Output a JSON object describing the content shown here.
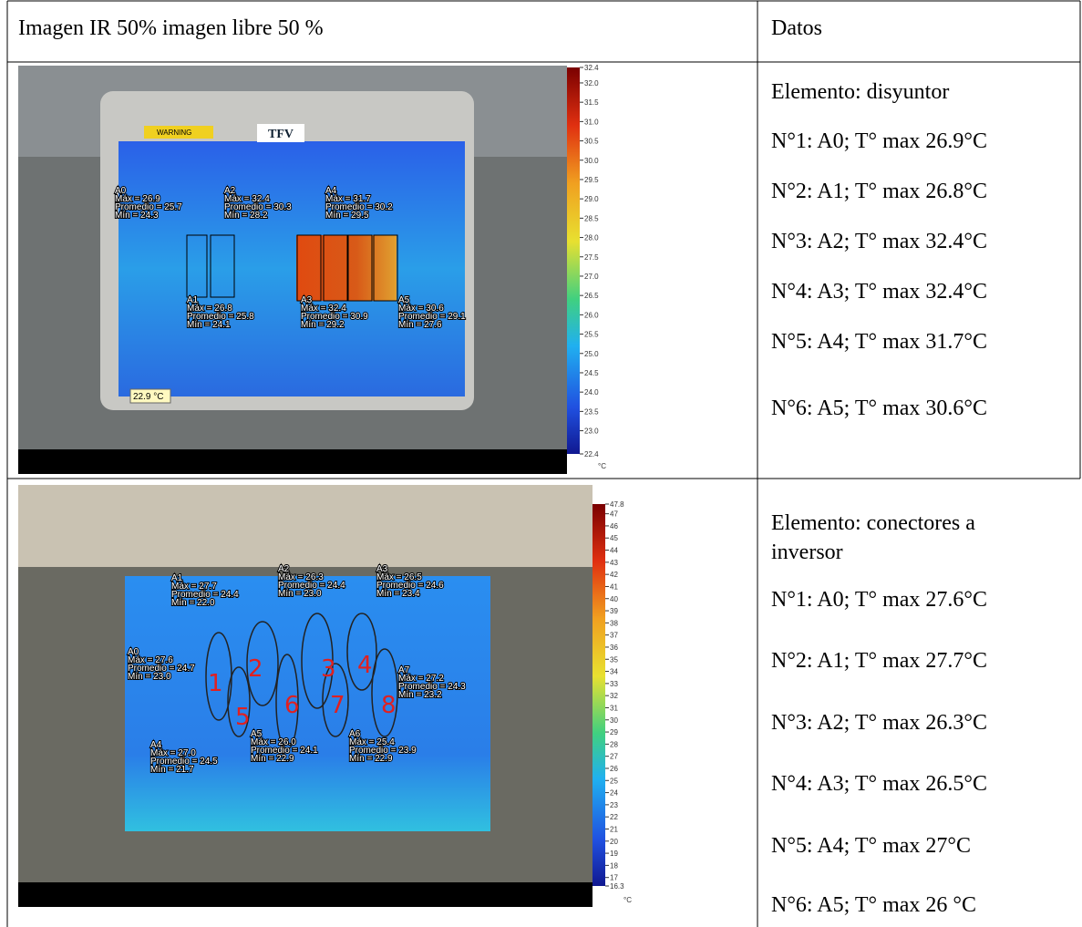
{
  "header": {
    "left": "Imagen IR 50% imagen libre 50 %",
    "right": "Datos"
  },
  "rows": [
    {
      "image": {
        "warning": "WARNING",
        "tag": "TFV",
        "spot": "22.9 °C",
        "regions": [
          {
            "label": "A0",
            "max": "Máx = 26.9",
            "avg": "Promedio = 25.7",
            "min": "Mín = 24.3"
          },
          {
            "label": "A2",
            "max": "Máx = 32.4",
            "avg": "Promedio = 30.3",
            "min": "Mín = 28.2"
          },
          {
            "label": "A4",
            "max": "Máx = 31.7",
            "avg": "Promedio = 30.2",
            "min": "Mín = 29.5"
          },
          {
            "label": "A1",
            "max": "Máx = 26.8",
            "avg": "Promedio = 25.8",
            "min": "Mín = 24.1"
          },
          {
            "label": "A3",
            "max": "Máx = 32.4",
            "avg": "Promedio = 30.9",
            "min": "Mín = 29.2"
          },
          {
            "label": "A5",
            "max": "Máx = 30.6",
            "avg": "Promedio = 29.1",
            "min": "Mín = 27.6"
          }
        ],
        "scale": {
          "ticks": [
            "32.4",
            "32.0",
            "31.5",
            "31.0",
            "30.5",
            "30.0",
            "29.5",
            "29.0",
            "28.5",
            "28.0",
            "27.5",
            "27.0",
            "26.5",
            "26.0",
            "25.5",
            "25.0",
            "24.5",
            "24.0",
            "23.5",
            "23.0",
            "22.4"
          ],
          "unit": "°C"
        }
      },
      "element": "Elemento: disyuntor",
      "items": [
        "N°1: A0; T° max 26.9°C",
        "N°2: A1; T° max 26.8°C",
        "N°3: A2; T° max 32.4°C",
        "N°4: A3; T° max 32.4°C",
        "N°5: A4; T° max 31.7°C",
        "N°6: A5; T° max 30.6°C"
      ]
    },
    {
      "image": {
        "regions": [
          {
            "label": "A1",
            "max": "Máx = 27.7",
            "avg": "Promedio = 24.4",
            "min": "Mín = 22.0"
          },
          {
            "label": "A2",
            "max": "Máx = 26.3",
            "avg": "Promedio = 24.4",
            "min": "Mín = 23.0"
          },
          {
            "label": "A3",
            "max": "Máx = 26.5",
            "avg": "Promedio = 24.6",
            "min": "Mín = 23.4"
          },
          {
            "label": "A0",
            "max": "Máx = 27.6",
            "avg": "Promedio = 24.7",
            "min": "Mín = 23.0"
          },
          {
            "label": "A7",
            "max": "Máx = 27.2",
            "avg": "Promedio = 24.3",
            "min": "Mín = 23.2"
          },
          {
            "label": "A4",
            "max": "Máx = 27.0",
            "avg": "Promedio = 24.5",
            "min": "Mín = 21.7"
          },
          {
            "label": "A5",
            "max": "Máx = 26.0",
            "avg": "Promedio = 24.1",
            "min": "Mín = 22.9"
          },
          {
            "label": "A6",
            "max": "Máx = 25.4",
            "avg": "Promedio = 23.9",
            "min": "Mín = 22.9"
          }
        ],
        "handwritten": [
          "1",
          "2",
          "3",
          "4",
          "5",
          "6",
          "7",
          "8"
        ],
        "scale": {
          "ticks": [
            "47.8",
            "47",
            "46",
            "45",
            "44",
            "43",
            "42",
            "41",
            "40",
            "39",
            "38",
            "37",
            "36",
            "35",
            "34",
            "33",
            "32",
            "31",
            "30",
            "29",
            "28",
            "27",
            "26",
            "25",
            "24",
            "23",
            "22",
            "21",
            "20",
            "19",
            "18",
            "17",
            "16.3"
          ],
          "unit": "°C"
        }
      },
      "element": "Elemento: conectores a inversor",
      "items": [
        "N°1: A0; T° max 27.6°C",
        "N°2: A1; T° max 27.7°C",
        "N°3: A2; T° max 26.3°C",
        "N°4: A3; T° max 26.5°C",
        "N°5: A4; T° max 27°C",
        "N°6: A5; T° max 26 °C"
      ]
    }
  ]
}
